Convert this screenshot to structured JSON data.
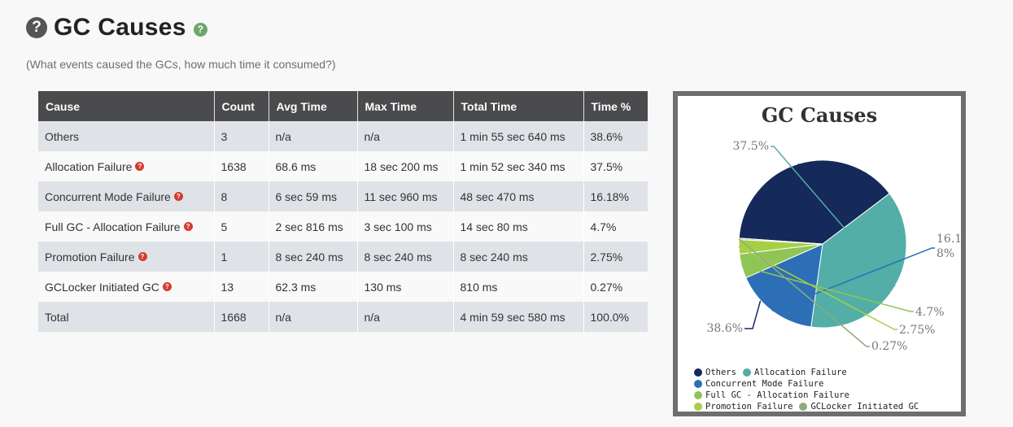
{
  "header": {
    "help_icon": "question-circle-icon",
    "title": "GC Causes",
    "info_icon": "question-circle-icon"
  },
  "subtitle": "(What events caused the GCs, how much time it consumed?)",
  "table": {
    "columns": [
      "Cause",
      "Count",
      "Avg Time",
      "Max Time",
      "Total Time",
      "Time %"
    ],
    "rows": [
      {
        "cause": "Others",
        "help": false,
        "count": "3",
        "avg": "n/a",
        "max": "n/a",
        "total": "1 min 55 sec 640 ms",
        "pct": "38.6%"
      },
      {
        "cause": "Allocation Failure",
        "help": true,
        "count": "1638",
        "avg": "68.6 ms",
        "max": "18 sec 200 ms",
        "total": "1 min 52 sec 340 ms",
        "pct": "37.5%"
      },
      {
        "cause": "Concurrent Mode Failure",
        "help": true,
        "count": "8",
        "avg": "6 sec 59 ms",
        "max": "11 sec 960 ms",
        "total": "48 sec 470 ms",
        "pct": "16.18%"
      },
      {
        "cause": "Full GC - Allocation Failure",
        "help": true,
        "count": "5",
        "avg": "2 sec 816 ms",
        "max": "3 sec 100 ms",
        "total": "14 sec 80 ms",
        "pct": "4.7%"
      },
      {
        "cause": "Promotion Failure",
        "help": true,
        "count": "1",
        "avg": "8 sec 240 ms",
        "max": "8 sec 240 ms",
        "total": "8 sec 240 ms",
        "pct": "2.75%"
      },
      {
        "cause": "GCLocker Initiated GC",
        "help": true,
        "count": "13",
        "avg": "62.3 ms",
        "max": "130 ms",
        "total": "810 ms",
        "pct": "0.27%"
      },
      {
        "cause": "Total",
        "help": false,
        "count": "1668",
        "avg": "n/a",
        "max": "n/a",
        "total": "4 min 59 sec 580 ms",
        "pct": "100.0%"
      }
    ]
  },
  "chart_data": {
    "type": "pie",
    "title": "GC Causes",
    "slices": [
      {
        "name": "Others",
        "value": 38.6,
        "label": "38.6%",
        "color": "#15295a"
      },
      {
        "name": "Allocation Failure",
        "value": 37.5,
        "label": "37.5%",
        "color": "#52aea6"
      },
      {
        "name": "Concurrent Mode Failure",
        "value": 16.18,
        "label": "16.1\n8%",
        "color": "#2d6fb7"
      },
      {
        "name": "Full GC - Allocation Failure",
        "value": 4.7,
        "label": "4.7%",
        "color": "#8fc557"
      },
      {
        "name": "Promotion Failure",
        "value": 2.75,
        "label": "2.75%",
        "color": "#a7cf45"
      },
      {
        "name": "GCLocker Initiated GC",
        "value": 0.27,
        "label": "0.27%",
        "color": "#8eab80"
      }
    ],
    "legend_position": "bottom"
  }
}
